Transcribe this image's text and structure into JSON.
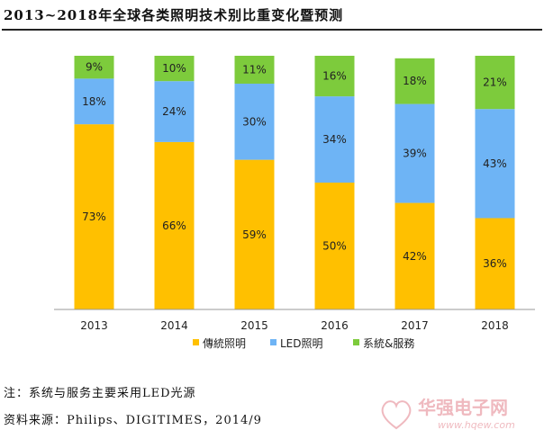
{
  "title": "2013~2018年全球各类照明技术别比重变化暨预测",
  "chart_data": {
    "type": "bar",
    "stacked": true,
    "categories": [
      "2013",
      "2014",
      "2015",
      "2016",
      "2017",
      "2018"
    ],
    "ylim": [
      0,
      100
    ],
    "series": [
      {
        "name": "傳統照明",
        "color": "#FFC000",
        "values": [
          73,
          66,
          59,
          50,
          42,
          36
        ],
        "labels": [
          "73%",
          "66%",
          "59%",
          "50%",
          "42%",
          "36%"
        ]
      },
      {
        "name": "LED照明",
        "color": "#6EB4F5",
        "values": [
          18,
          24,
          30,
          34,
          39,
          43
        ],
        "labels": [
          "18%",
          "24%",
          "30%",
          "34%",
          "39%",
          "43%"
        ]
      },
      {
        "name": "系統&服務",
        "color": "#7DCB3C",
        "values": [
          9,
          10,
          11,
          16,
          18,
          21
        ],
        "labels": [
          "9%",
          "10%",
          "11%",
          "16%",
          "18%",
          "21%"
        ]
      }
    ],
    "legend_position": "bottom",
    "grid": false
  },
  "notes": {
    "note": "注：系统与服务主要采用LED光源",
    "source": "资料来源：Philips、DIGITIMES，2014/9"
  },
  "watermark": {
    "logo_text": "华强电子网",
    "url": "www.hqew.com"
  }
}
